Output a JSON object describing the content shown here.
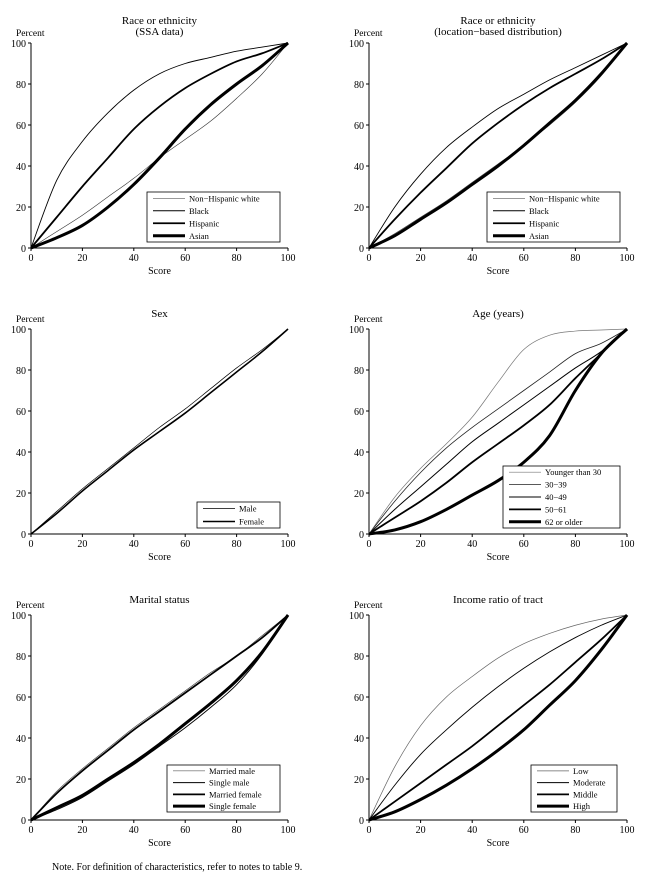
{
  "note": "Note. For definition of characteristics, refer to notes to table 9.",
  "chart_data": [
    {
      "type": "line",
      "title": [
        "Race or ethnicity",
        "(SSA data)"
      ],
      "xlabel": "Score",
      "ylabel": "Percent",
      "xlim": [
        0,
        100
      ],
      "ylim": [
        0,
        100
      ],
      "xticks": [
        "0",
        "20",
        "40",
        "60",
        "80",
        "100"
      ],
      "yticks": [
        "0",
        "20",
        "40",
        "60",
        "80",
        "100"
      ],
      "legend": "bottom-right",
      "x": [
        0,
        10,
        20,
        30,
        40,
        50,
        60,
        70,
        80,
        90,
        100
      ],
      "series": [
        {
          "name": "Non−Hispanic white",
          "values": [
            0,
            8,
            16,
            25,
            34,
            44,
            53,
            62,
            73,
            85,
            100
          ]
        },
        {
          "name": "Black",
          "values": [
            0,
            33,
            52,
            66,
            77,
            85,
            90,
            93,
            96,
            98,
            100
          ]
        },
        {
          "name": "Hispanic",
          "values": [
            0,
            15,
            30,
            44,
            58,
            69,
            78,
            85,
            91,
            95,
            100
          ]
        },
        {
          "name": "Asian",
          "values": [
            0,
            5,
            11,
            20,
            31,
            44,
            58,
            70,
            80,
            89,
            100
          ]
        }
      ]
    },
    {
      "type": "line",
      "title": [
        "Race or ethnicity",
        "(location−based distribution)"
      ],
      "xlabel": "Score",
      "ylabel": "Percent",
      "xlim": [
        0,
        100
      ],
      "ylim": [
        0,
        100
      ],
      "xticks": [
        "0",
        "20",
        "40",
        "60",
        "80",
        "100"
      ],
      "yticks": [
        "0",
        "20",
        "40",
        "60",
        "80",
        "100"
      ],
      "legend": "bottom-right",
      "x": [
        0,
        10,
        20,
        30,
        40,
        50,
        60,
        70,
        80,
        90,
        100
      ],
      "series": [
        {
          "name": "Non−Hispanic white",
          "values": [
            0,
            7,
            15,
            23,
            32,
            41,
            50,
            60,
            71,
            84,
            100
          ]
        },
        {
          "name": "Black",
          "values": [
            0,
            20,
            36,
            49,
            59,
            68,
            75,
            82,
            88,
            94,
            100
          ]
        },
        {
          "name": "Hispanic",
          "values": [
            0,
            14,
            27,
            39,
            51,
            61,
            70,
            78,
            85,
            92,
            100
          ]
        },
        {
          "name": "Asian",
          "values": [
            0,
            6,
            14,
            22,
            31,
            40,
            50,
            61,
            72,
            85,
            100
          ]
        }
      ]
    },
    {
      "type": "line",
      "title": [
        "Sex"
      ],
      "xlabel": "Score",
      "ylabel": "Percent",
      "xlim": [
        0,
        100
      ],
      "ylim": [
        0,
        100
      ],
      "xticks": [
        "0",
        "20",
        "40",
        "60",
        "80",
        "100"
      ],
      "yticks": [
        "0",
        "20",
        "40",
        "60",
        "80",
        "100"
      ],
      "legend": "bottom-right",
      "x": [
        0,
        10,
        20,
        30,
        40,
        50,
        60,
        70,
        80,
        90,
        100
      ],
      "series": [
        {
          "name": "Male",
          "values": [
            0,
            11,
            22,
            32,
            42,
            52,
            61,
            71,
            81,
            90,
            100
          ]
        },
        {
          "name": "Female",
          "values": [
            0,
            10,
            21,
            31,
            41,
            50,
            59,
            69,
            79,
            89,
            100
          ]
        }
      ]
    },
    {
      "type": "line",
      "title": [
        "Age (years)"
      ],
      "xlabel": "Score",
      "ylabel": "Percent",
      "xlim": [
        0,
        100
      ],
      "ylim": [
        0,
        100
      ],
      "xticks": [
        "0",
        "20",
        "40",
        "60",
        "80",
        "100"
      ],
      "yticks": [
        "0",
        "20",
        "40",
        "60",
        "80",
        "100"
      ],
      "legend": "bottom-right",
      "x": [
        0,
        10,
        20,
        30,
        40,
        50,
        60,
        70,
        80,
        90,
        100
      ],
      "series": [
        {
          "name": "Younger than 30",
          "values": [
            0,
            18,
            32,
            44,
            57,
            74,
            90,
            97,
            99,
            99.5,
            100
          ]
        },
        {
          "name": "30−39",
          "values": [
            0,
            16,
            30,
            42,
            52,
            61,
            70,
            79,
            88,
            93,
            100
          ]
        },
        {
          "name": "40−49",
          "values": [
            0,
            12,
            23,
            34,
            45,
            54,
            63,
            72,
            81,
            89,
            100
          ]
        },
        {
          "name": "50−61",
          "values": [
            0,
            8,
            16,
            25,
            35,
            44,
            53,
            63,
            76,
            88,
            100
          ]
        },
        {
          "name": "62 or older",
          "values": [
            0,
            2,
            6,
            12,
            19,
            26,
            35,
            48,
            70,
            88,
            100
          ]
        }
      ]
    },
    {
      "type": "line",
      "title": [
        "Marital status"
      ],
      "xlabel": "Score",
      "ylabel": "Percent",
      "xlim": [
        0,
        100
      ],
      "ylim": [
        0,
        100
      ],
      "xticks": [
        "0",
        "20",
        "40",
        "60",
        "80",
        "100"
      ],
      "yticks": [
        "0",
        "20",
        "40",
        "60",
        "80",
        "100"
      ],
      "legend": "bottom-right",
      "x": [
        0,
        10,
        20,
        30,
        40,
        50,
        60,
        70,
        80,
        90,
        100
      ],
      "series": [
        {
          "name": "Married male",
          "values": [
            0,
            14,
            25,
            35,
            45,
            54,
            63,
            72,
            80,
            90,
            100
          ]
        },
        {
          "name": "Single male",
          "values": [
            0,
            5,
            11,
            19,
            27,
            36,
            45,
            55,
            66,
            81,
            100
          ]
        },
        {
          "name": "Married female",
          "values": [
            0,
            13,
            24,
            34,
            44,
            53,
            62,
            71,
            80,
            89,
            100
          ]
        },
        {
          "name": "Single female",
          "values": [
            0,
            6,
            12,
            20,
            28,
            37,
            47,
            57,
            68,
            82,
            100
          ]
        }
      ]
    },
    {
      "type": "line",
      "title": [
        "Income ratio of tract"
      ],
      "xlabel": "Score",
      "ylabel": "Percent",
      "xlim": [
        0,
        100
      ],
      "ylim": [
        0,
        100
      ],
      "xticks": [
        "0",
        "20",
        "40",
        "60",
        "80",
        "100"
      ],
      "yticks": [
        "0",
        "20",
        "40",
        "60",
        "80",
        "100"
      ],
      "legend": "bottom-right",
      "x": [
        0,
        10,
        20,
        30,
        40,
        50,
        60,
        70,
        80,
        90,
        100
      ],
      "series": [
        {
          "name": "Low",
          "values": [
            0,
            26,
            46,
            60,
            70,
            79,
            86,
            91,
            95,
            98,
            100
          ]
        },
        {
          "name": "Moderate",
          "values": [
            0,
            17,
            32,
            44,
            55,
            65,
            74,
            82,
            89,
            95,
            100
          ]
        },
        {
          "name": "Middle",
          "values": [
            0,
            9,
            18,
            27,
            36,
            46,
            56,
            66,
            77,
            88,
            100
          ]
        },
        {
          "name": "High",
          "values": [
            0,
            4,
            10,
            17,
            25,
            34,
            44,
            56,
            68,
            83,
            100
          ]
        }
      ]
    }
  ]
}
